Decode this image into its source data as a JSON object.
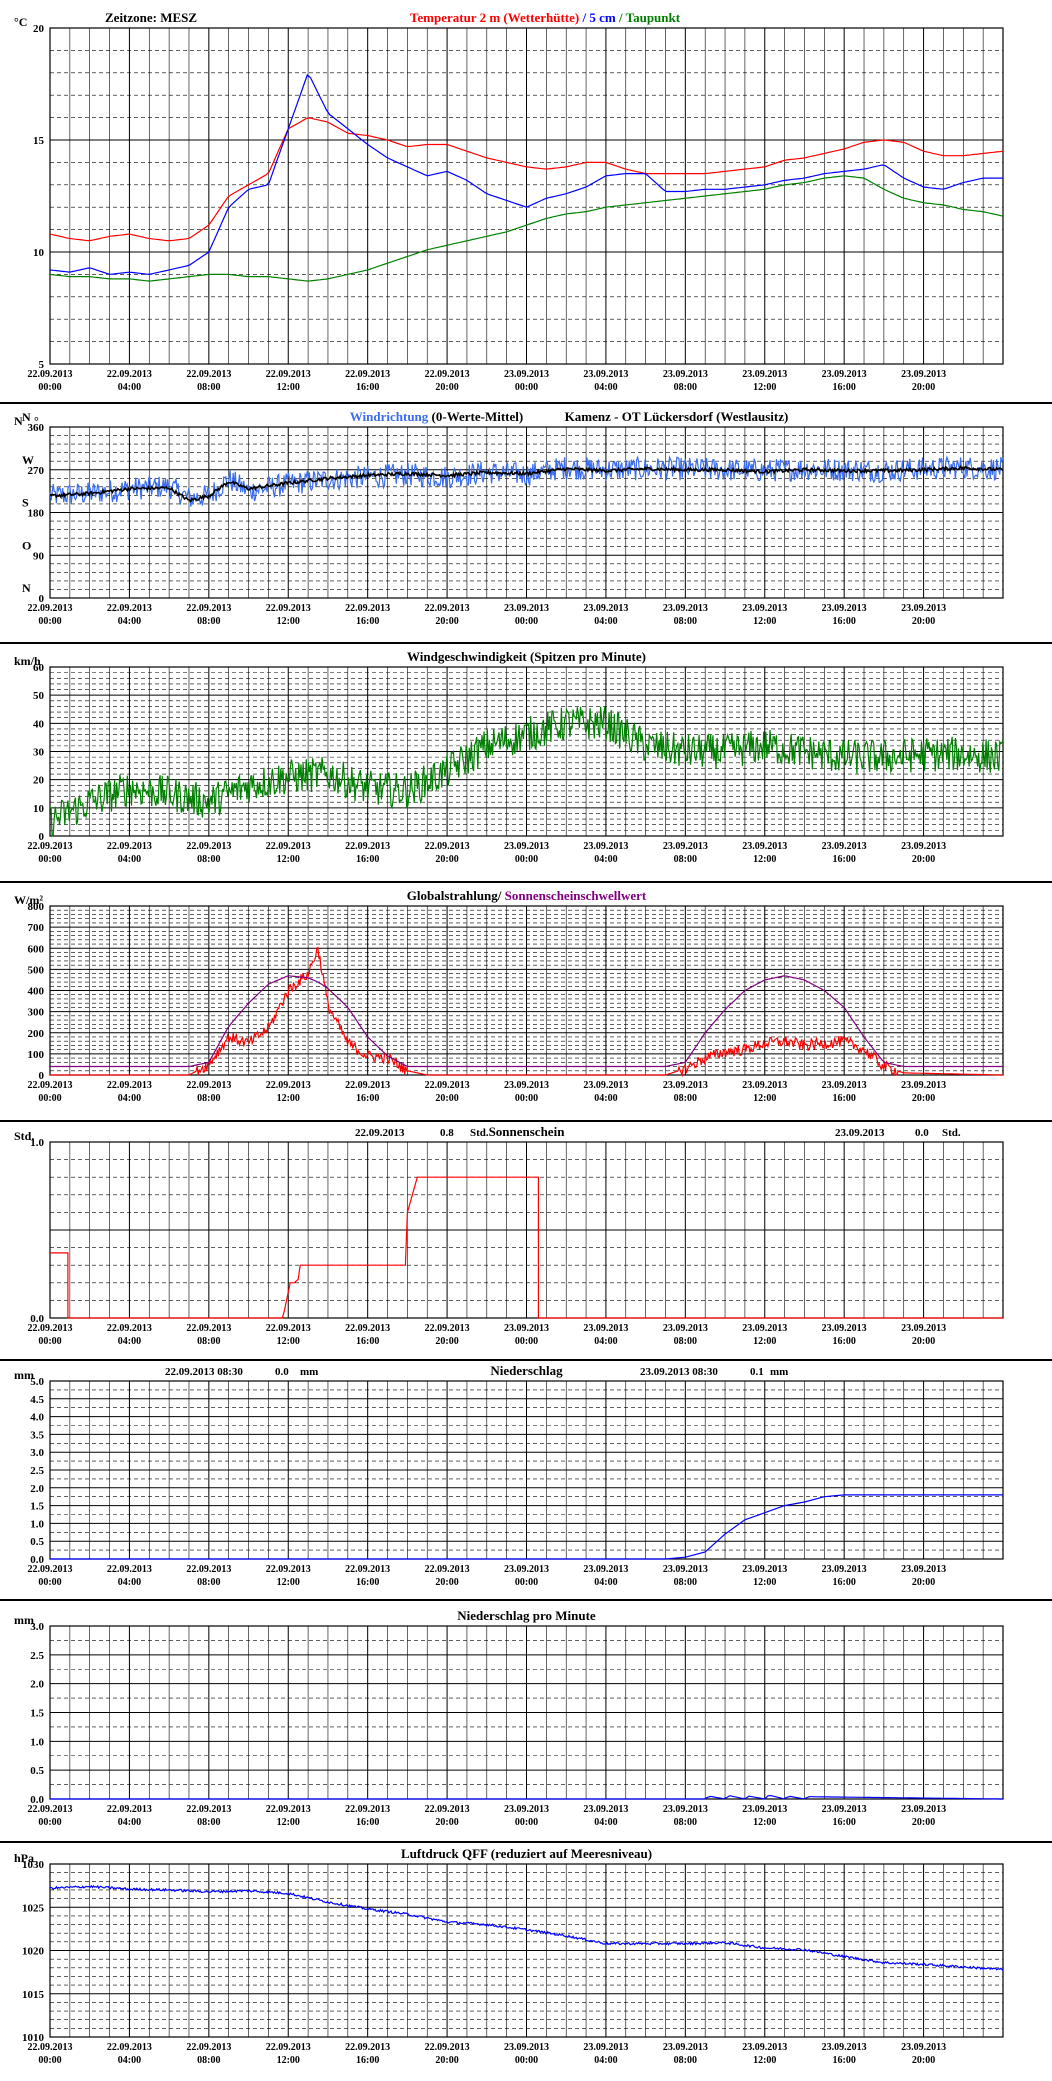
{
  "timezone_label": "Zeitzone: MESZ",
  "x_ticks": [
    [
      "22.09.2013",
      "00:00"
    ],
    [
      "22.09.2013",
      "04:00"
    ],
    [
      "22.09.2013",
      "08:00"
    ],
    [
      "22.09.2013",
      "12:00"
    ],
    [
      "22.09.2013",
      "16:00"
    ],
    [
      "22.09.2013",
      "20:00"
    ],
    [
      "23.09.2013",
      "00:00"
    ],
    [
      "23.09.2013",
      "04:00"
    ],
    [
      "23.09.2013",
      "08:00"
    ],
    [
      "23.09.2013",
      "12:00"
    ],
    [
      "23.09.2013",
      "16:00"
    ],
    [
      "23.09.2013",
      "20:00"
    ]
  ],
  "colors": {
    "red": "#ff0000",
    "blue": "#0000ff",
    "green": "#008000",
    "purple": "#800080",
    "lightblue": "#3a6cf0",
    "black": "#000000"
  },
  "chart_data": [
    {
      "id": "temperature",
      "type": "line",
      "unit_label": "°C",
      "ylim": [
        5,
        20
      ],
      "yticks": [
        5,
        10,
        15,
        20
      ],
      "title_parts": [
        {
          "text": "Temperatur 2 m (Wetterhütte)",
          "color": "#ff0000"
        },
        {
          "text": " / ",
          "color": "#0000ff"
        },
        {
          "text": "5 cm",
          "color": "#0000ff"
        },
        {
          "text": " / ",
          "color": "#008000"
        },
        {
          "text": "Taupunkt",
          "color": "#008000"
        }
      ],
      "x_hours": [
        0,
        1,
        2,
        3,
        4,
        5,
        6,
        7,
        8,
        9,
        10,
        11,
        12,
        13,
        14,
        15,
        16,
        17,
        18,
        19,
        20,
        21,
        22,
        23,
        24,
        25,
        26,
        27,
        28,
        29,
        30,
        31,
        32,
        33,
        34,
        35,
        36,
        37,
        38,
        39,
        40,
        41,
        42,
        43,
        44,
        45,
        46,
        47,
        48
      ],
      "series": [
        {
          "name": "Temperatur 2 m (Wetterhütte)",
          "color": "#ff0000",
          "values": [
            10.8,
            10.6,
            10.5,
            10.7,
            10.8,
            10.6,
            10.5,
            10.6,
            11.2,
            12.5,
            13.0,
            13.5,
            15.5,
            16.0,
            15.8,
            15.3,
            15.2,
            15.0,
            14.7,
            14.8,
            14.8,
            14.5,
            14.2,
            14.0,
            13.8,
            13.7,
            13.8,
            14.0,
            14.0,
            13.7,
            13.5,
            13.5,
            13.5,
            13.5,
            13.6,
            13.7,
            13.8,
            14.1,
            14.2,
            14.4,
            14.6,
            14.9,
            15.0,
            14.9,
            14.5,
            14.3,
            14.3,
            14.4,
            14.5
          ]
        },
        {
          "name": "5 cm",
          "color": "#0000ff",
          "values": [
            9.2,
            9.1,
            9.3,
            9.0,
            9.1,
            9.0,
            9.2,
            9.4,
            10.0,
            12.0,
            12.8,
            13.0,
            15.5,
            18.0,
            16.2,
            15.5,
            14.8,
            14.2,
            13.8,
            13.4,
            13.6,
            13.2,
            12.6,
            12.3,
            12.0,
            12.4,
            12.6,
            12.9,
            13.4,
            13.5,
            13.5,
            12.7,
            12.7,
            12.8,
            12.8,
            12.9,
            13.0,
            13.2,
            13.3,
            13.5,
            13.6,
            13.7,
            13.9,
            13.3,
            12.9,
            12.8,
            13.1,
            13.3,
            13.3
          ]
        },
        {
          "name": "Taupunkt",
          "color": "#008000",
          "values": [
            9.0,
            8.9,
            8.9,
            8.8,
            8.8,
            8.7,
            8.8,
            8.9,
            9.0,
            9.0,
            8.9,
            8.9,
            8.8,
            8.7,
            8.8,
            9.0,
            9.2,
            9.5,
            9.8,
            10.1,
            10.3,
            10.5,
            10.7,
            10.9,
            11.2,
            11.5,
            11.7,
            11.8,
            12.0,
            12.1,
            12.2,
            12.3,
            12.4,
            12.5,
            12.6,
            12.7,
            12.8,
            13.0,
            13.1,
            13.3,
            13.4,
            13.3,
            12.8,
            12.4,
            12.2,
            12.1,
            11.9,
            11.8,
            11.6
          ]
        }
      ]
    },
    {
      "id": "wind_direction",
      "type": "line",
      "unit_label": "N",
      "unit_label2": "°",
      "ylim": [
        0,
        360
      ],
      "yticks": [
        0,
        90,
        180,
        270,
        360
      ],
      "compass": [
        {
          "text": "N",
          "v": 360
        },
        {
          "text": "W",
          "v": 270
        },
        {
          "text": "S",
          "v": 180
        },
        {
          "text": "O",
          "v": 90
        },
        {
          "text": "N",
          "v": 0
        }
      ],
      "title_parts": [
        {
          "text": "Windrichtung",
          "color": "#3a6cf0"
        },
        {
          "text": " (0-Werte-Mittel)",
          "color": "#000000"
        }
      ],
      "station": "Kamenz - OT Lückersdorf (Westlausitz)",
      "x_hours": [
        0,
        2,
        4,
        6,
        7,
        8,
        9,
        10,
        12,
        14,
        16,
        18,
        20,
        22,
        24,
        26,
        28,
        30,
        32,
        34,
        36,
        38,
        40,
        42,
        44,
        46,
        48
      ],
      "series": [
        {
          "name": "Windrichtung",
          "color": "#3a6cf0",
          "noisy": 55,
          "values": [
            215,
            220,
            230,
            235,
            210,
            215,
            250,
            225,
            240,
            250,
            255,
            260,
            255,
            265,
            260,
            275,
            270,
            272,
            272,
            270,
            268,
            272,
            270,
            268,
            272,
            275,
            272
          ]
        },
        {
          "name": "Mittel",
          "color": "#000000",
          "noisy": 8,
          "values": [
            215,
            220,
            230,
            232,
            205,
            215,
            245,
            230,
            242,
            252,
            258,
            262,
            258,
            264,
            262,
            272,
            268,
            272,
            270,
            270,
            266,
            270,
            268,
            268,
            270,
            274,
            270
          ]
        }
      ]
    },
    {
      "id": "wind_speed",
      "type": "line",
      "unit_label": "km/h",
      "ylim": [
        0,
        60
      ],
      "yticks": [
        0,
        10,
        20,
        30,
        40,
        50,
        60
      ],
      "title_parts": [
        {
          "text": "Windgeschwindigkeit (Spitzen pro Minute)",
          "color": "#000000"
        }
      ],
      "x_hours": [
        0,
        2,
        4,
        6,
        8,
        10,
        12,
        14,
        16,
        18,
        20,
        22,
        24,
        26,
        28,
        30,
        32,
        34,
        36,
        38,
        40,
        42,
        44,
        46,
        48
      ],
      "series": [
        {
          "name": "Windgeschwindigkeit",
          "color": "#008000",
          "noisy": 14,
          "values": [
            5,
            12,
            17,
            15,
            12,
            18,
            21,
            22,
            17,
            16,
            23,
            32,
            36,
            40,
            40,
            32,
            30,
            30,
            32,
            30,
            28,
            28,
            29,
            29,
            28
          ]
        }
      ]
    },
    {
      "id": "radiation",
      "type": "line",
      "unit_label": "W/m²",
      "ylim": [
        0,
        800
      ],
      "yticks": [
        0,
        100,
        200,
        300,
        400,
        500,
        600,
        700,
        800
      ],
      "title_parts": [
        {
          "text": "Globalstrahlung",
          "color": "#000000"
        },
        {
          "text": "/ ",
          "color": "#000000"
        },
        {
          "text": "Sonnenscheinschwellwert",
          "color": "#800080"
        }
      ],
      "x_hours": [
        0,
        7,
        8,
        9,
        10,
        11,
        12,
        13,
        13.5,
        14,
        15,
        16,
        17,
        18,
        19,
        31,
        32,
        33,
        34,
        35,
        36,
        37,
        38,
        39,
        40,
        41,
        42,
        43,
        48
      ],
      "series": [
        {
          "name": "Globalstrahlung",
          "color": "#ff0000",
          "noisy": 60,
          "values": [
            0,
            0,
            50,
            180,
            150,
            220,
            400,
            480,
            600,
            330,
            150,
            90,
            80,
            20,
            0,
            0,
            30,
            80,
            110,
            120,
            150,
            160,
            140,
            150,
            160,
            120,
            40,
            10,
            0
          ]
        },
        {
          "name": "Sonnenscheinschwellwert",
          "color": "#800080",
          "values": [
            40,
            40,
            60,
            230,
            340,
            430,
            470,
            460,
            440,
            410,
            320,
            180,
            90,
            40,
            40,
            40,
            60,
            200,
            310,
            400,
            450,
            470,
            450,
            400,
            320,
            180,
            60,
            40,
            40
          ]
        }
      ]
    },
    {
      "id": "sunshine",
      "type": "line",
      "unit_label": "Std.",
      "ylim": [
        0,
        1.0
      ],
      "yticks": [
        0,
        0.5,
        1.0
      ],
      "ytick_labels": [
        "0.0",
        "",
        "1.0"
      ],
      "title_parts": [
        {
          "text": "Sonnenschein",
          "color": "#000000"
        }
      ],
      "annotations": [
        {
          "date": "22.09.2013",
          "value": "0.8",
          "unit": "Std."
        },
        {
          "date": "23.09.2013",
          "value": "0.0",
          "unit": "Std."
        }
      ],
      "x_hours": [
        0,
        0.9,
        0.9,
        11.7,
        11.8,
        12.1,
        12.3,
        12.5,
        12.6,
        13.0,
        13.1,
        17.9,
        18.0,
        18.5,
        18.6,
        24.6,
        24.6,
        48
      ],
      "series": [
        {
          "name": "Sonnenschein",
          "color": "#ff0000",
          "step": true,
          "values": [
            0.37,
            0.37,
            0.0,
            0.0,
            0.04,
            0.2,
            0.2,
            0.22,
            0.3,
            0.3,
            0.3,
            0.3,
            0.6,
            0.8,
            0.8,
            0.8,
            0.0,
            0.0
          ]
        }
      ]
    },
    {
      "id": "precipitation",
      "type": "line",
      "unit_label": "mm",
      "ylim": [
        0,
        5.0
      ],
      "yticks": [
        0,
        0.5,
        1.0,
        1.5,
        2.0,
        2.5,
        3.0,
        3.5,
        4.0,
        4.5,
        5.0
      ],
      "ytick_labels": [
        "0.0",
        "0.5",
        "1.0",
        "1.5",
        "2.0",
        "2.5",
        "3.0",
        "3.5",
        "4.0",
        "4.5",
        "5.0"
      ],
      "title_parts": [
        {
          "text": "Niederschlag",
          "color": "#000000"
        }
      ],
      "annotations": [
        {
          "date": "22.09.2013 08:30",
          "value": "0.0",
          "unit": "mm"
        },
        {
          "date": "23.09.2013 08:30",
          "value": "0.1",
          "unit": "mm"
        }
      ],
      "x_hours": [
        0,
        31,
        32,
        33,
        34,
        35,
        36,
        37,
        38,
        39,
        40,
        44,
        48
      ],
      "series": [
        {
          "name": "Niederschlag",
          "color": "#0000ff",
          "step": true,
          "values": [
            0,
            0,
            0.05,
            0.2,
            0.7,
            1.1,
            1.3,
            1.5,
            1.6,
            1.75,
            1.8,
            1.8,
            1.8
          ]
        }
      ]
    },
    {
      "id": "precip_minute",
      "type": "line",
      "unit_label": "mm",
      "ylim": [
        0,
        3.0
      ],
      "yticks": [
        0,
        0.5,
        1.0,
        1.5,
        2.0,
        2.5,
        3.0
      ],
      "ytick_labels": [
        "0.0",
        "0.5",
        "1.0",
        "1.5",
        "2.0",
        "2.5",
        "3.0"
      ],
      "title_parts": [
        {
          "text": "Niederschlag pro Minute",
          "color": "#000000"
        }
      ],
      "x_hours": [
        0,
        33,
        33.2,
        34,
        34.2,
        35,
        35.2,
        36,
        36.2,
        37,
        37.2,
        38,
        38.2,
        48
      ],
      "series": [
        {
          "name": "Niederschlag pro Minute",
          "color": "#0000ff",
          "values": [
            0,
            0,
            0.05,
            0,
            0.06,
            0,
            0.05,
            0,
            0.07,
            0,
            0.05,
            0,
            0.04,
            0
          ]
        }
      ]
    },
    {
      "id": "pressure",
      "type": "line",
      "unit_label": "hPa",
      "ylim": [
        1010,
        1030
      ],
      "yticks": [
        1010,
        1015,
        1020,
        1025,
        1030
      ],
      "title_parts": [
        {
          "text": "Luftdruck QFF (reduziert auf Meeresniveau)",
          "color": "#000000"
        }
      ],
      "x_hours": [
        0,
        2,
        4,
        6,
        8,
        10,
        12,
        14,
        16,
        18,
        20,
        22,
        24,
        26,
        28,
        30,
        32,
        34,
        36,
        38,
        40,
        42,
        44,
        46,
        48
      ],
      "series": [
        {
          "name": "Luftdruck QFF",
          "color": "#0000ff",
          "noisy": 0.3,
          "values": [
            1027.2,
            1027.4,
            1027.1,
            1027.0,
            1026.8,
            1026.9,
            1026.6,
            1025.6,
            1024.8,
            1024.2,
            1023.3,
            1023.0,
            1022.4,
            1021.7,
            1020.8,
            1020.8,
            1020.8,
            1020.9,
            1020.3,
            1020.1,
            1019.3,
            1018.6,
            1018.4,
            1018.1,
            1017.8
          ]
        }
      ]
    }
  ]
}
